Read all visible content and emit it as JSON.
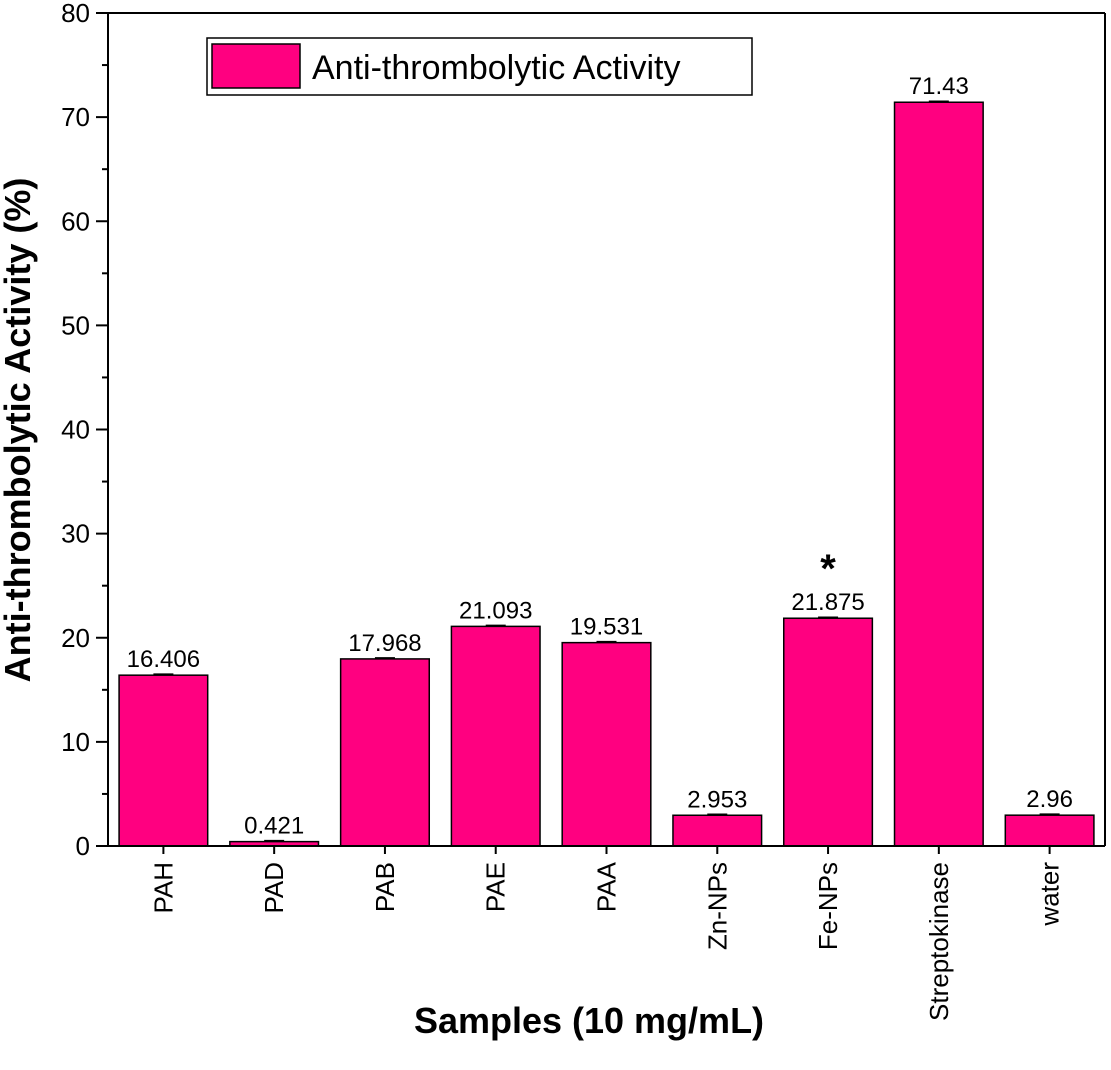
{
  "chart_data": {
    "type": "bar",
    "title": "",
    "xlabel": "Samples (10 mg/mL)",
    "ylabel": "Anti-thrombolytic Activity (%)",
    "ylim": [
      0,
      80
    ],
    "yticks": [
      0,
      10,
      20,
      30,
      40,
      50,
      60,
      70,
      80
    ],
    "categories": [
      "PAH",
      "PAD",
      "PAB",
      "PAE",
      "PAA",
      "Zn-NPs",
      "Fe-NPs",
      "Streptokinase",
      "water"
    ],
    "series": [
      {
        "name": "Anti-thrombolytic Activity",
        "values": [
          16.406,
          0.421,
          17.968,
          21.093,
          19.531,
          2.953,
          21.875,
          71.43,
          2.96
        ],
        "labels": [
          "16.406",
          "0.421",
          "17.968",
          "21.093",
          "19.531",
          "2.953",
          "21.875",
          "71.43",
          "2.96"
        ]
      }
    ],
    "annotations": [
      {
        "category": "Fe-NPs",
        "text": "*"
      }
    ],
    "legend": {
      "position": "top-left"
    },
    "grid": false,
    "bar_color": "#ff0080",
    "bar_edge_color": "#000000"
  }
}
